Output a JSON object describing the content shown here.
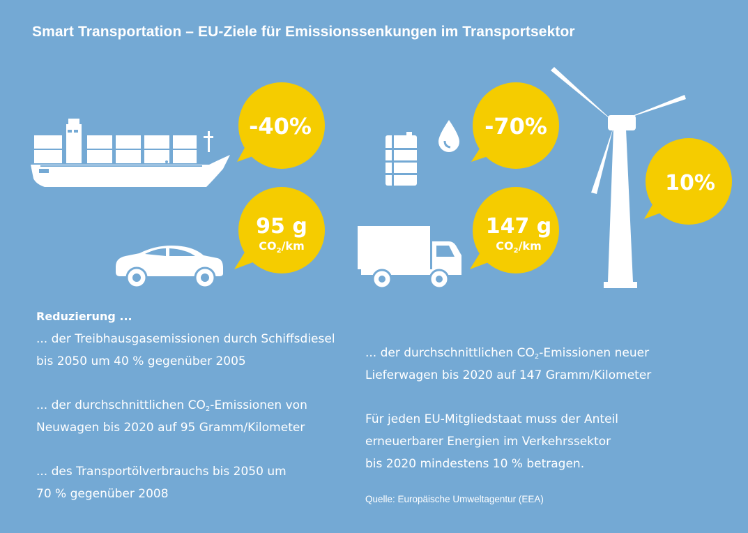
{
  "title": "Smart Transportation – EU-Ziele für Emissionssenkungen im Transportsektor",
  "bubbles": {
    "ship": "-40%",
    "car_value": "95 g",
    "car_unit_a": "CO",
    "car_unit_sub": "2",
    "car_unit_b": "/km",
    "oil": "-70%",
    "truck_value": "147 g",
    "truck_unit_a": "CO",
    "truck_unit_sub": "2",
    "truck_unit_b": "/km",
    "wind": "10%"
  },
  "left": {
    "heading": "Reduzierung ...",
    "item1_line1": "... der Treibhausgasemissionen durch Schiffsdiesel",
    "item1_line2": "bis 2050 um 40 % gegenüber 2005",
    "item2_line1_a": "... der durchschnittlichen CO",
    "item2_line1_sub": "2",
    "item2_line1_b": "-Emissionen von",
    "item2_line2": "Neuwagen bis 2020 auf 95 Gramm/Kilometer",
    "item3_line1": "... des Transportölverbrauchs bis 2050 um",
    "item3_line2": "70 % gegenüber 2008"
  },
  "right": {
    "item1_line1_a": "... der durchschnittlichen CO",
    "item1_line1_sub": "2",
    "item1_line1_b": "-Emissionen neuer",
    "item1_line2": "Lieferwagen bis 2020 auf 147 Gramm/Kilometer",
    "item2_line1": "Für jeden EU-Mitgliedstaat muss der Anteil",
    "item2_line2": "erneuerbarer Energien im Verkehrssektor",
    "item2_line3": "bis 2020 mindestens 10 % betragen."
  },
  "source": "Quelle: Europäische Umweltagentur (EEA)",
  "colors": {
    "background": "#74a9d4",
    "bubble": "#f5cc00",
    "icon": "#ffffff"
  },
  "icons": [
    "container-ship-icon",
    "car-icon",
    "oil-barrel-icon",
    "oil-drop-icon",
    "delivery-truck-icon",
    "wind-turbine-icon"
  ]
}
